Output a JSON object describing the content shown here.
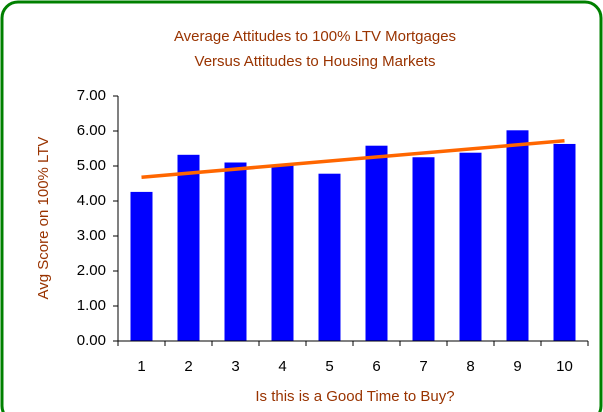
{
  "chart_data": {
    "type": "bar",
    "title": [
      "Average Attitudes to 100% LTV Mortgages",
      "Versus Attitudes to Housing Markets"
    ],
    "x_label": "Is this is a Good Time to Buy?",
    "y_label": "Avg Score on 100% LTV",
    "categories": [
      "1",
      "2",
      "3",
      "4",
      "5",
      "6",
      "7",
      "8",
      "9",
      "10"
    ],
    "values": [
      4.26,
      5.32,
      5.1,
      5.02,
      4.78,
      5.58,
      5.25,
      5.38,
      6.02,
      5.63
    ],
    "color": "#0000ff",
    "trendline": {
      "color": "#ff6600",
      "values": [
        4.68,
        5.72
      ]
    },
    "ylim": [
      0,
      7
    ],
    "yticks": [
      {
        "value": 0,
        "label": "0.00"
      },
      {
        "value": 1,
        "label": "1.00"
      },
      {
        "value": 2,
        "label": "2.00"
      },
      {
        "value": 3,
        "label": "3.00"
      },
      {
        "value": 4,
        "label": "4.00"
      },
      {
        "value": 5,
        "label": "5.00"
      },
      {
        "value": 6,
        "label": "6.00"
      },
      {
        "value": 7,
        "label": "7.00"
      }
    ],
    "grid": false
  }
}
